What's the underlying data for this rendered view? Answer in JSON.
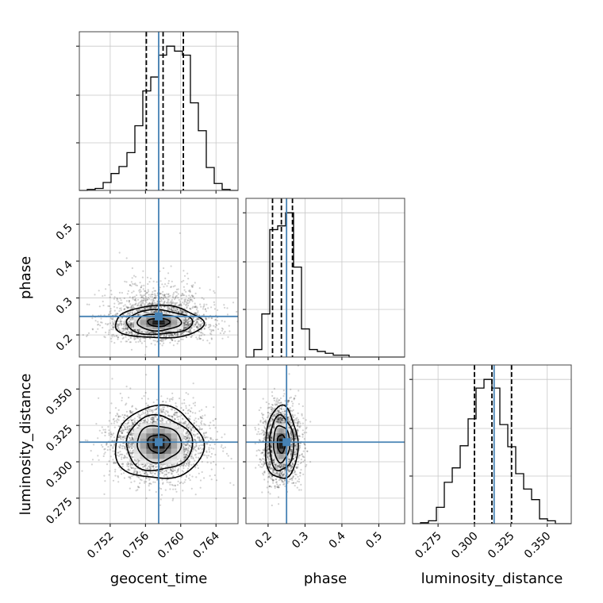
{
  "chart_data": {
    "type": "corner",
    "parameters": [
      "geocent_time",
      "phase",
      "luminosity_distance"
    ],
    "axis_labels": {
      "x": [
        "geocent_time",
        "phase",
        "luminosity_distance"
      ],
      "y": [
        "phase",
        "luminosity_distance"
      ]
    },
    "ranges": {
      "geocent_time": [
        0.7485,
        0.7665
      ],
      "phase": [
        0.14,
        0.57
      ],
      "luminosity_distance": [
        0.2575,
        0.3665
      ]
    },
    "ticks": {
      "geocent_time": [
        0.752,
        0.756,
        0.76,
        0.764
      ],
      "phase": [
        0.2,
        0.3,
        0.4,
        0.5
      ],
      "luminosity_distance": [
        0.275,
        0.3,
        0.325,
        0.35
      ]
    },
    "tick_labels": {
      "geocent_time": [
        "0.752",
        "0.756",
        "0.760",
        "0.764"
      ],
      "phase_x": [
        "0.2",
        "0.3",
        "0.4",
        "0.5"
      ],
      "phase_y": [
        "0.2",
        "0.3",
        "0.4",
        "0.5"
      ],
      "luminosity_distance": [
        "0.275",
        "0.300",
        "0.325",
        "0.350"
      ]
    },
    "truths": {
      "geocent_time": 0.7575,
      "phase": 0.25,
      "luminosity_distance": 0.3135
    },
    "quantiles": {
      "geocent_time": [
        0.7561,
        0.758,
        0.7603
      ],
      "phase": [
        0.212,
        0.236,
        0.266
      ],
      "luminosity_distance": [
        0.3,
        0.312,
        0.3255
      ]
    },
    "histograms": {
      "geocent_time": {
        "edges": [
          0.7485,
          0.7494,
          0.7503,
          0.7512,
          0.7521,
          0.753,
          0.7539,
          0.7548,
          0.7557,
          0.7566,
          0.7575,
          0.7584,
          0.7593,
          0.7602,
          0.7611,
          0.762,
          0.7629,
          0.7638,
          0.7647,
          0.7656,
          0.7665
        ],
        "counts": [
          0,
          1,
          2,
          8,
          17,
          24,
          38,
          65,
          100,
          114,
          136,
          145,
          140,
          136,
          88,
          60,
          23,
          7,
          1,
          0
        ]
      },
      "phase": {
        "edges": [
          0.14,
          0.1615,
          0.183,
          0.2045,
          0.226,
          0.2475,
          0.269,
          0.2905,
          0.312,
          0.3335,
          0.355,
          0.3765,
          0.398,
          0.4195,
          0.441,
          0.4625,
          0.484,
          0.5055,
          0.527,
          0.5485,
          0.57
        ],
        "counts": [
          0,
          4,
          23,
          68,
          70,
          77,
          48,
          15,
          4,
          3,
          2,
          1,
          1,
          0,
          0,
          0,
          0,
          0,
          0,
          0
        ]
      },
      "luminosity_distance": {
        "edges": [
          0.2575,
          0.26295,
          0.2684,
          0.27385,
          0.2793,
          0.28475,
          0.2902,
          0.29565,
          0.3011,
          0.30655,
          0.312,
          0.31745,
          0.3229,
          0.32835,
          0.3338,
          0.33925,
          0.3447,
          0.35015,
          0.3556,
          0.36105,
          0.3665
        ],
        "counts": [
          0,
          1,
          3,
          17,
          43,
          58,
          81,
          109,
          141,
          150,
          141,
          103,
          80,
          52,
          36,
          25,
          5,
          3,
          0,
          0
        ]
      }
    },
    "density_2d": {
      "geocent_time_vs_phase": {
        "center": [
          0.7575,
          0.234
        ],
        "sigma": [
          0.0025,
          0.022
        ]
      },
      "geocent_time_vs_luminosity_distance": {
        "center": [
          0.7575,
          0.3125
        ],
        "sigma": [
          0.0025,
          0.0125
        ]
      },
      "phase_vs_luminosity_distance": {
        "center": [
          0.236,
          0.3125
        ],
        "sigma": [
          0.022,
          0.0125
        ]
      }
    },
    "contour_levels_sigma": [
      0.5,
      1.0,
      1.5,
      2.0
    ],
    "truth_color": "#4682b4",
    "hist_color": "#000000",
    "grid": true
  }
}
